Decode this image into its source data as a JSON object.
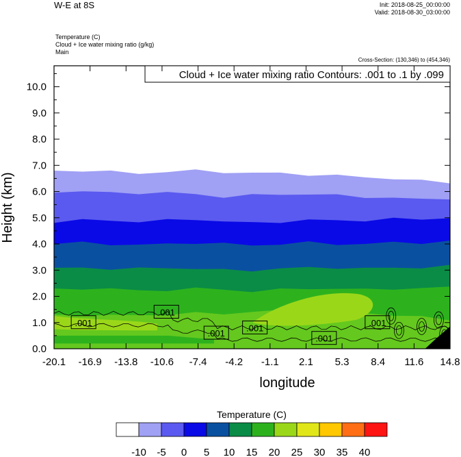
{
  "header": {
    "title": "W-E at 8S",
    "init": "Init: 2018-08-25_00:00:00",
    "valid": "Valid: 2018-08-30_03:00:00",
    "field_lines": [
      "Temperature   (C)",
      "Cloud + Ice water mixing ratio   (g/kg)",
      "Main"
    ],
    "cross_section": "Cross-Section: (130,346) to (454,346)"
  },
  "chart_data": {
    "type": "area",
    "xlabel": "longitude",
    "ylabel": "Height (km)",
    "xlim": [
      -20.1,
      14.8
    ],
    "ylim": [
      0,
      10.8
    ],
    "x_ticks": [
      "-20.1",
      "-16.9",
      "-13.8",
      "-10.6",
      "-7.4",
      "-4.2",
      "-1.1",
      "2.1",
      "5.3",
      "8.4",
      "11.6",
      "14.8"
    ],
    "y_ticks": [
      "0.0",
      "1.0",
      "2.0",
      "3.0",
      "4.0",
      "5.0",
      "6.0",
      "7.0",
      "8.0",
      "9.0",
      "10.0"
    ],
    "grid": false,
    "contour_annotation": "Cloud + Ice water mixing ratio Contours: .001 to .1 by .099",
    "contour_labels": [
      {
        "text": ".001",
        "x": -17.5,
        "y": 1.0
      },
      {
        "text": ".001",
        "x": -10.2,
        "y": 1.4
      },
      {
        "text": ".001",
        "x": -5.8,
        "y": 0.6
      },
      {
        "text": ".001",
        "x": -2.4,
        "y": 0.8
      },
      {
        "text": ".001",
        "x": 3.7,
        "y": 0.4
      },
      {
        "text": ".001",
        "x": 8.4,
        "y": 1.0
      }
    ],
    "temperature_bands": [
      {
        "level": -10,
        "color": "#a0a0f5",
        "top_km": [
          6.8,
          6.8,
          6.75,
          6.7,
          6.75,
          6.8,
          6.75,
          6.7,
          6.7,
          6.65,
          6.6,
          6.55,
          6.5,
          6.4,
          6.35
        ]
      },
      {
        "level": -5,
        "color": "#5a5af0",
        "top_km": [
          6.0,
          6.0,
          5.95,
          5.95,
          5.95,
          5.9,
          5.8,
          5.85,
          5.9,
          5.9,
          5.85,
          5.8,
          5.75,
          5.7,
          5.75
        ]
      },
      {
        "level": 0,
        "color": "#0a0ae6",
        "top_km": [
          4.85,
          4.9,
          4.9,
          4.85,
          4.9,
          4.95,
          4.85,
          4.8,
          4.85,
          4.9,
          4.9,
          4.9,
          4.95,
          4.95,
          5.0
        ]
      },
      {
        "level": 5,
        "color": "#0a50a0",
        "top_km": [
          4.0,
          4.05,
          4.0,
          3.95,
          4.0,
          4.05,
          4.0,
          3.95,
          4.0,
          4.05,
          4.0,
          4.0,
          4.05,
          4.05,
          4.1
        ]
      },
      {
        "level": 10,
        "color": "#0a8c46",
        "top_km": [
          3.05,
          3.1,
          3.05,
          3.05,
          3.1,
          3.05,
          3.0,
          3.0,
          3.05,
          3.1,
          3.1,
          3.05,
          3.1,
          3.1,
          3.15
        ]
      },
      {
        "level": 15,
        "color": "#2db21e",
        "top_km": [
          2.25,
          2.3,
          2.3,
          2.2,
          2.25,
          2.3,
          2.25,
          2.2,
          2.25,
          2.3,
          2.3,
          2.25,
          2.3,
          2.3,
          2.35
        ]
      },
      {
        "level": 20,
        "color": "#64c81e",
        "top_km": [
          1.3,
          1.3,
          1.25,
          1.3,
          1.3,
          1.35,
          1.35,
          1.4,
          1.45,
          1.45,
          1.4,
          1.35,
          1.3,
          1.2,
          1.1
        ]
      }
    ],
    "warm_blob": {
      "level": 25,
      "color": "#9bd719"
    },
    "colorbar": {
      "title": "Temperature  (C)",
      "colors": [
        "#ffffff",
        "#a0a0f5",
        "#5a5af0",
        "#0a0ae6",
        "#0a50a0",
        "#0a8c46",
        "#2db21e",
        "#9bd719",
        "#e1e619",
        "#ffc800",
        "#ff6e14",
        "#ff1414"
      ],
      "labels": [
        "-10",
        "-5",
        "0",
        "5",
        "10",
        "15",
        "20",
        "25",
        "30",
        "35",
        "40"
      ]
    }
  }
}
